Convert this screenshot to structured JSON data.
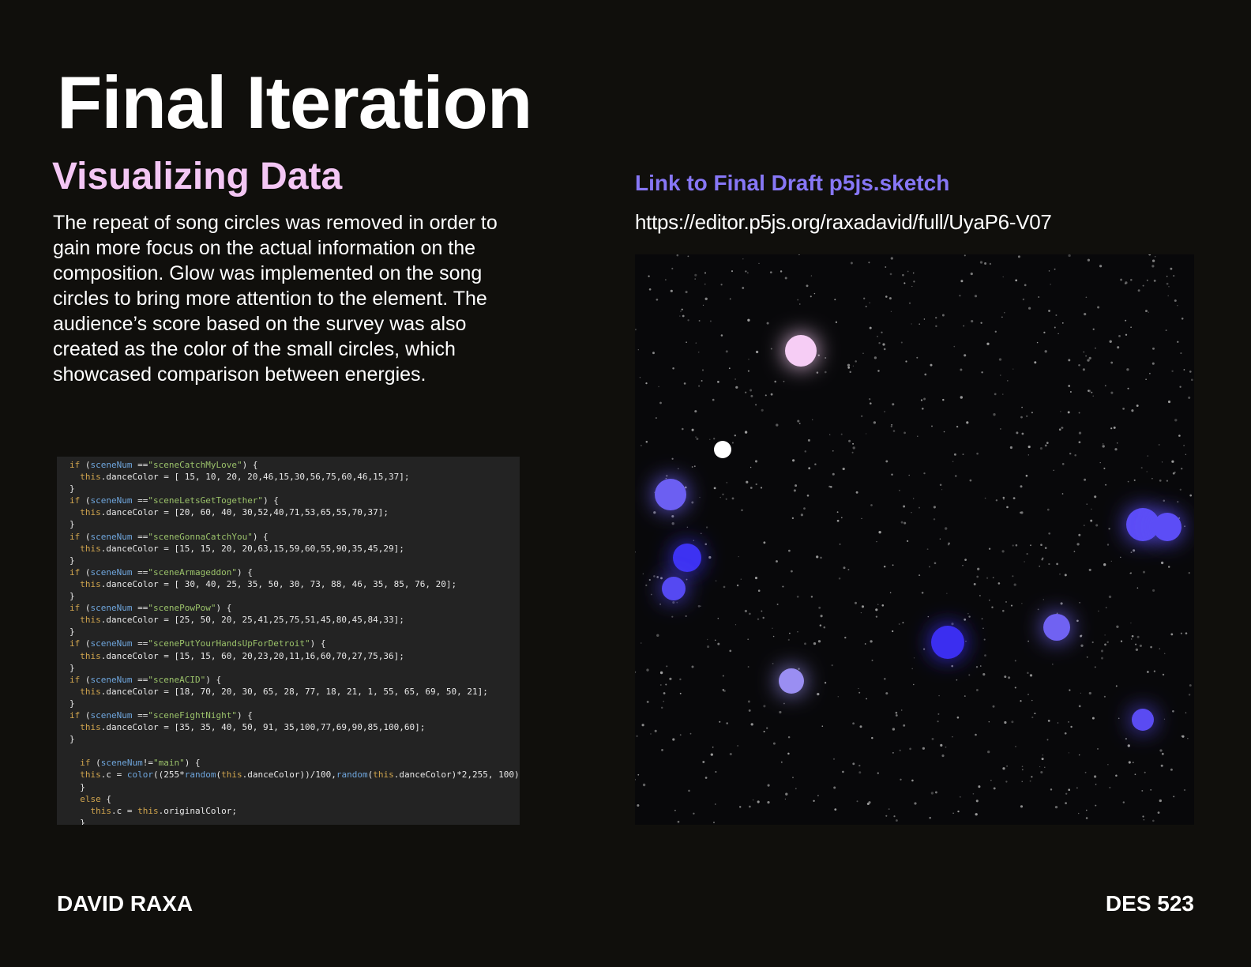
{
  "slide": {
    "title": "Final Iteration",
    "subtitle": "Visualizing Data",
    "body": "The repeat of song circles was removed in order to gain more focus on the actual information on the composition. Glow was implemented on the song circles to bring more attention to the element. The audience’s score based on the survey was also created as the color of the small circles, which showcased comparison between energies.",
    "link_label": "Link to Final Draft p5js.sketch",
    "url": "https://editor.p5js.org/raxadavid/full/UyaP6-V07",
    "author": "DAVID RAXA",
    "course": "DES 523"
  },
  "code": {
    "scenes": [
      {
        "name": "sceneCatchMyLove",
        "values": "[ 15, 10, 20, 20,46,15,30,56,75,60,46,15,37]"
      },
      {
        "name": "sceneLetsGetTogether",
        "values": "[20, 60, 40, 30,52,40,71,53,65,55,70,37]"
      },
      {
        "name": "sceneGonnaCatchYou",
        "values": "[15, 15, 20, 20,63,15,59,60,55,90,35,45,29]"
      },
      {
        "name": "sceneArmageddon",
        "values": "[ 30, 40, 25, 35, 50, 30, 73, 88, 46, 35, 85, 76, 20]"
      },
      {
        "name": "scenePowPow",
        "values": "[25, 50, 20, 25,41,25,75,51,45,80,45,84,33]"
      },
      {
        "name": "scenePutYourHandsUpForDetroit",
        "values": "[15, 15, 60, 20,23,20,11,16,60,70,27,75,36]"
      },
      {
        "name": "sceneACID",
        "values": "[18, 70, 20, 30, 65, 28, 77, 18, 21, 1, 55, 65, 69, 50, 21]"
      },
      {
        "name": "sceneFightNight",
        "values": "[35, 35, 40, 50, 91, 35,100,77,69,90,85,100,60]"
      }
    ],
    "main_check": "main",
    "color_expr": "color((255*random(this.danceColor))/100,random(this.danceColor)*2,255, 100);"
  },
  "colors": {
    "background": "#100f0c",
    "subtitle": "#f3c6f4",
    "link": "#8777f6",
    "keyword": "#d1a54e",
    "string": "#9bc26a",
    "variable": "#6fa6dd"
  }
}
